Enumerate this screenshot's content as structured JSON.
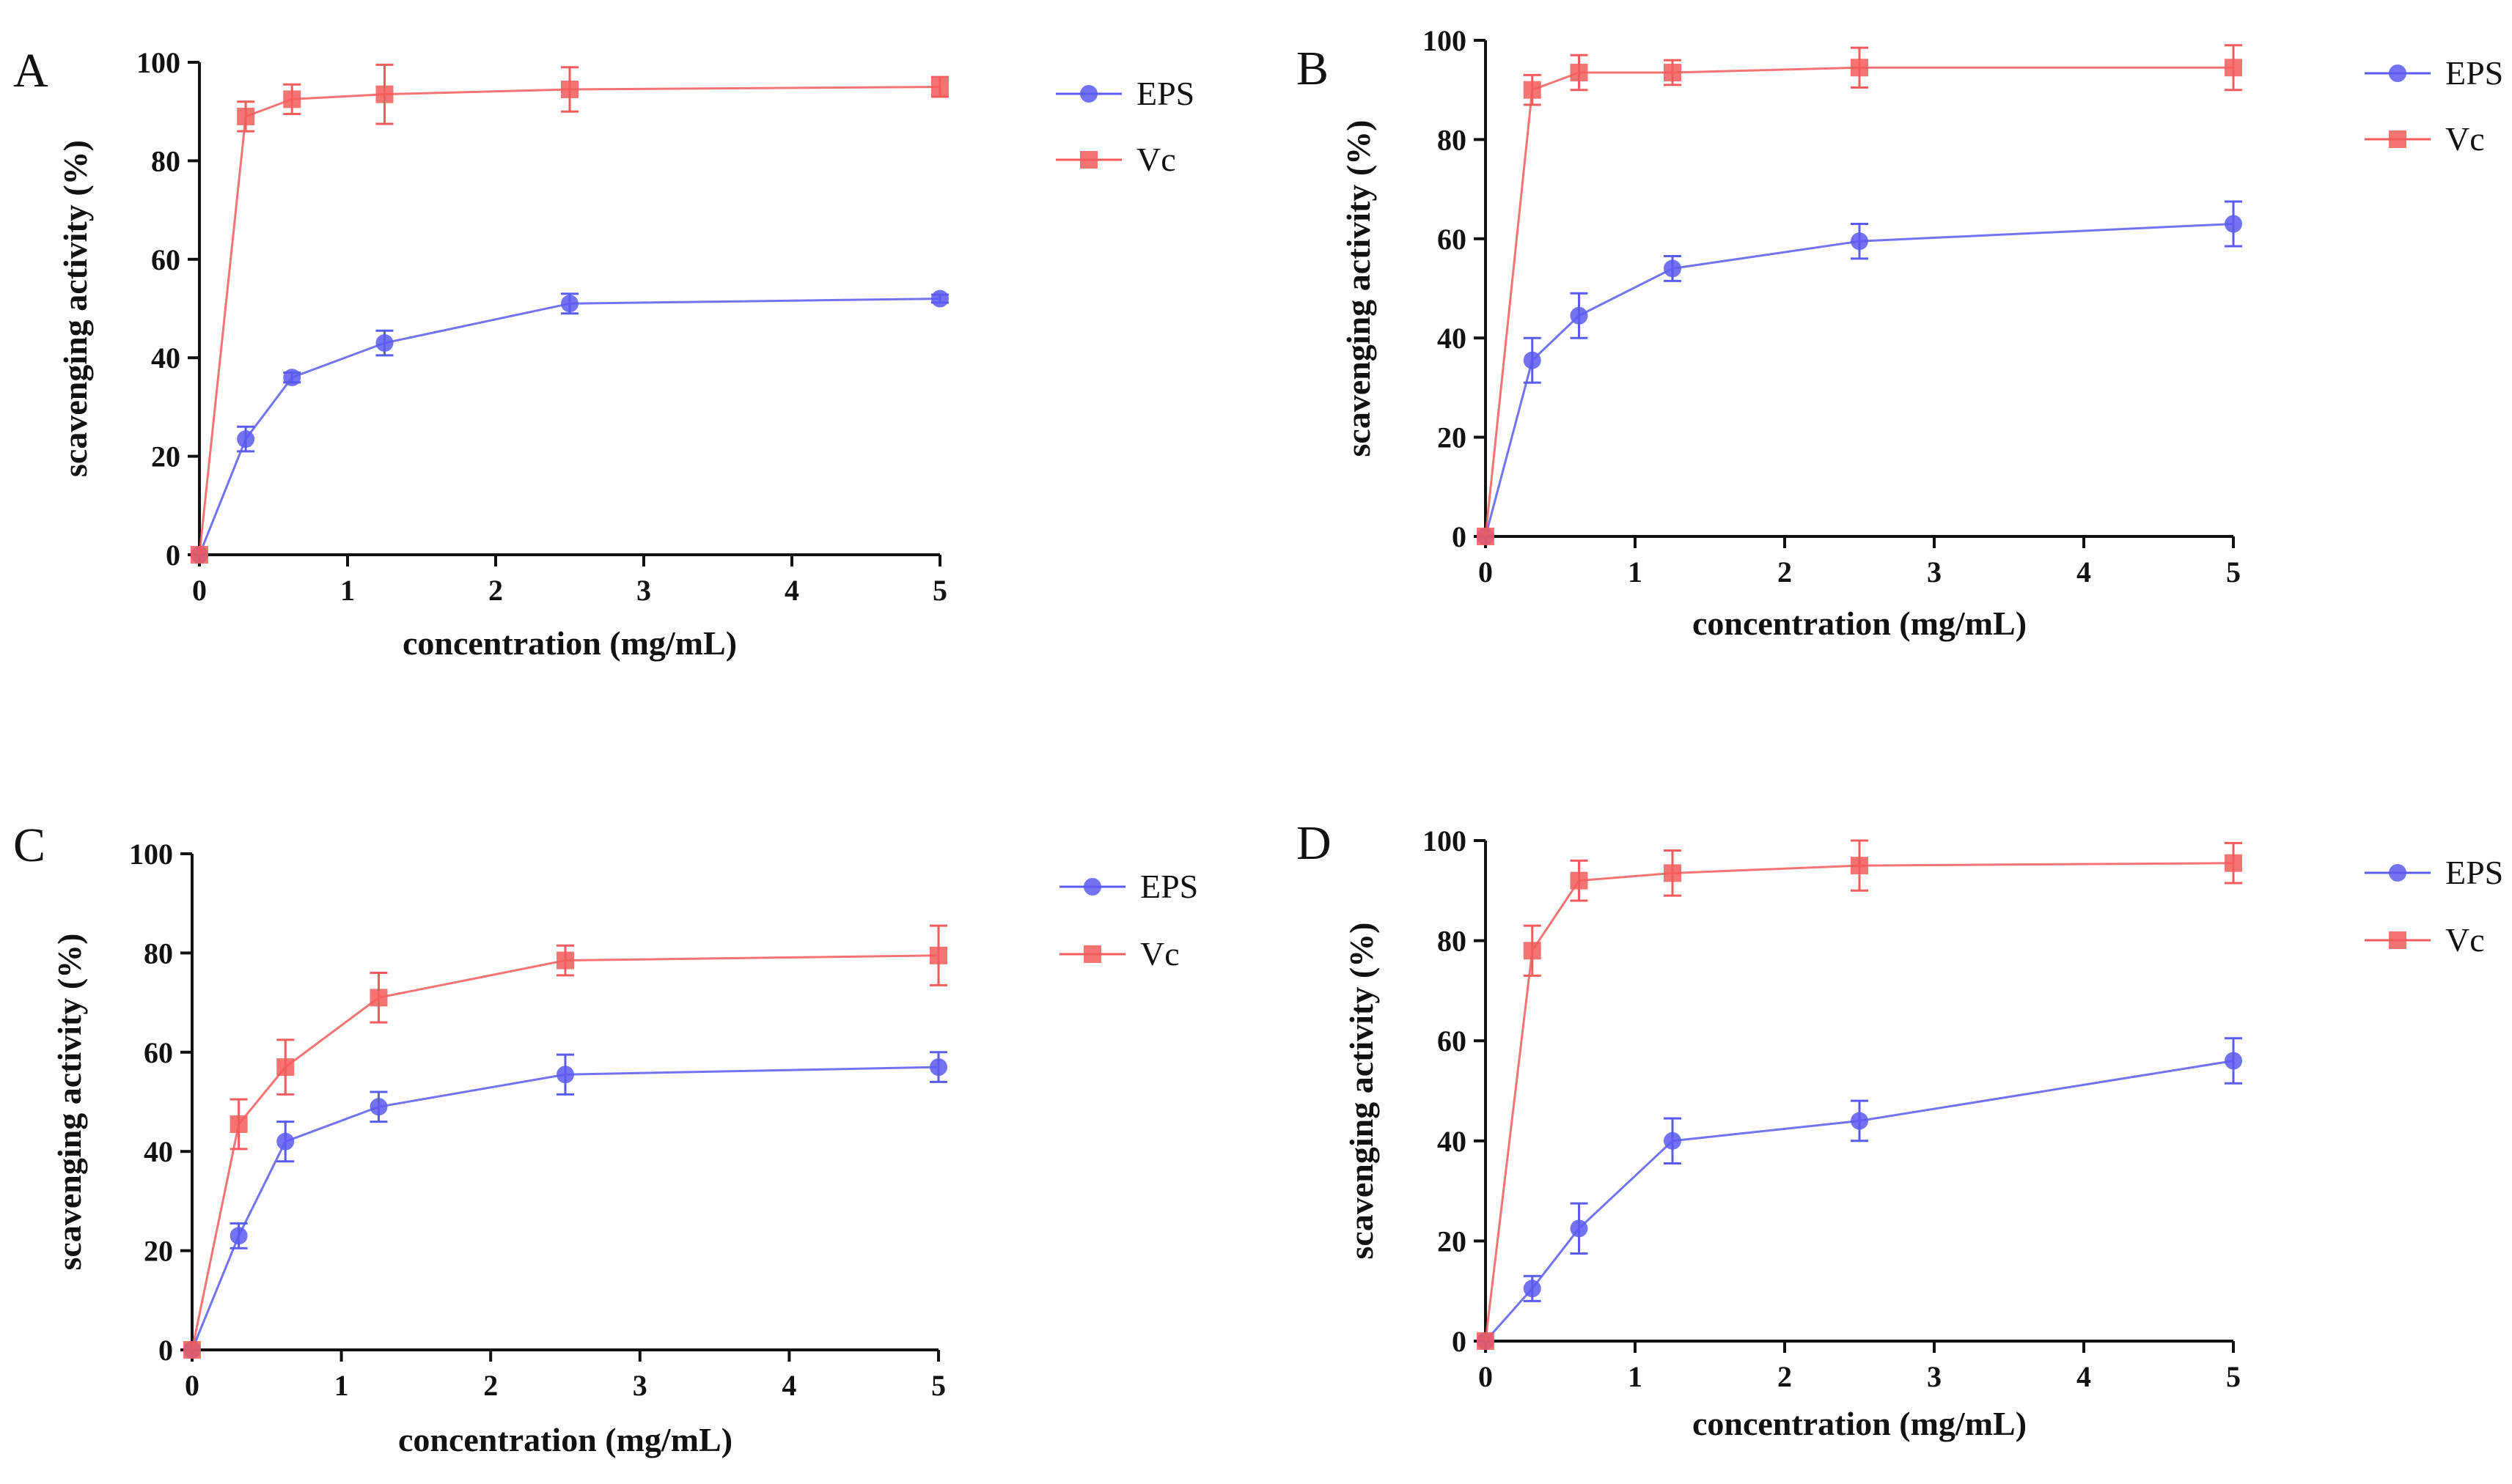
{
  "figure": {
    "colors": {
      "EPS": "#5b5bf0",
      "Vc": "#f25c5c",
      "axis": "#111111"
    }
  },
  "chart_data": [
    {
      "panel": "A",
      "type": "line",
      "xlabel": "concentration (mg/mL)",
      "ylabel": "scavenging activity (%)",
      "xlim": [
        0,
        5
      ],
      "ylim": [
        0,
        100
      ],
      "xticks": [
        0,
        1,
        2,
        3,
        4,
        5
      ],
      "yticks": [
        0,
        20,
        40,
        60,
        80,
        100
      ],
      "legend_position": "top-right",
      "x": [
        0,
        0.3125,
        0.625,
        1.25,
        2.5,
        5
      ],
      "series": [
        {
          "name": "EPS",
          "marker": "circle",
          "values": [
            0,
            23.5,
            36,
            43,
            51,
            52
          ],
          "errors": [
            0,
            2.5,
            1,
            2.5,
            2,
            0.8
          ]
        },
        {
          "name": "Vc",
          "marker": "square",
          "values": [
            0,
            89,
            92.5,
            93.5,
            94.5,
            95
          ],
          "errors": [
            0,
            3,
            3,
            6,
            4.5,
            2
          ]
        }
      ]
    },
    {
      "panel": "B",
      "type": "line",
      "xlabel": "concentration (mg/mL)",
      "ylabel": "scavenging activity (%)",
      "xlim": [
        0,
        5
      ],
      "ylim": [
        0,
        100
      ],
      "xticks": [
        0,
        1,
        2,
        3,
        4,
        5
      ],
      "yticks": [
        0,
        20,
        40,
        60,
        80,
        100
      ],
      "legend_position": "top-right",
      "x": [
        0,
        0.3125,
        0.625,
        1.25,
        2.5,
        5
      ],
      "series": [
        {
          "name": "EPS",
          "marker": "circle",
          "values": [
            0,
            35.5,
            44.5,
            54,
            59.5,
            63
          ],
          "errors": [
            0,
            4.5,
            4.5,
            2.5,
            3.5,
            4.5
          ]
        },
        {
          "name": "Vc",
          "marker": "square",
          "values": [
            0,
            90,
            93.5,
            93.5,
            94.5,
            94.5
          ],
          "errors": [
            0,
            3,
            3.5,
            2.5,
            4,
            4.5
          ]
        }
      ]
    },
    {
      "panel": "C",
      "type": "line",
      "xlabel": "concentration (mg/mL)",
      "ylabel": "scavenging activity (%)",
      "xlim": [
        0,
        5
      ],
      "ylim": [
        0,
        100
      ],
      "xticks": [
        0,
        1,
        2,
        3,
        4,
        5
      ],
      "yticks": [
        0,
        20,
        40,
        60,
        80,
        100
      ],
      "legend_position": "top-right",
      "x": [
        0,
        0.3125,
        0.625,
        1.25,
        2.5,
        5
      ],
      "series": [
        {
          "name": "EPS",
          "marker": "circle",
          "values": [
            0,
            23,
            42,
            49,
            55.5,
            57
          ],
          "errors": [
            0,
            2.5,
            4,
            3,
            4,
            3
          ]
        },
        {
          "name": "Vc",
          "marker": "square",
          "values": [
            0,
            45.5,
            57,
            71,
            78.5,
            79.5
          ],
          "errors": [
            0,
            5,
            5.5,
            5,
            3,
            6
          ]
        }
      ]
    },
    {
      "panel": "D",
      "type": "line",
      "xlabel": "concentration (mg/mL)",
      "ylabel": "scavenging activity (%)",
      "xlim": [
        0,
        5
      ],
      "ylim": [
        0,
        100
      ],
      "xticks": [
        0,
        1,
        2,
        3,
        4,
        5
      ],
      "yticks": [
        0,
        20,
        40,
        60,
        80,
        100
      ],
      "legend_position": "top-right",
      "x": [
        0,
        0.3125,
        0.625,
        1.25,
        2.5,
        5
      ],
      "series": [
        {
          "name": "EPS",
          "marker": "circle",
          "values": [
            0,
            10.5,
            22.5,
            40,
            44,
            56
          ],
          "errors": [
            0,
            2.5,
            5,
            4.5,
            4,
            4.5
          ]
        },
        {
          "name": "Vc",
          "marker": "square",
          "values": [
            0,
            78,
            92,
            93.5,
            95,
            95.5
          ],
          "errors": [
            0,
            5,
            4,
            4.5,
            5,
            4
          ]
        }
      ]
    }
  ]
}
